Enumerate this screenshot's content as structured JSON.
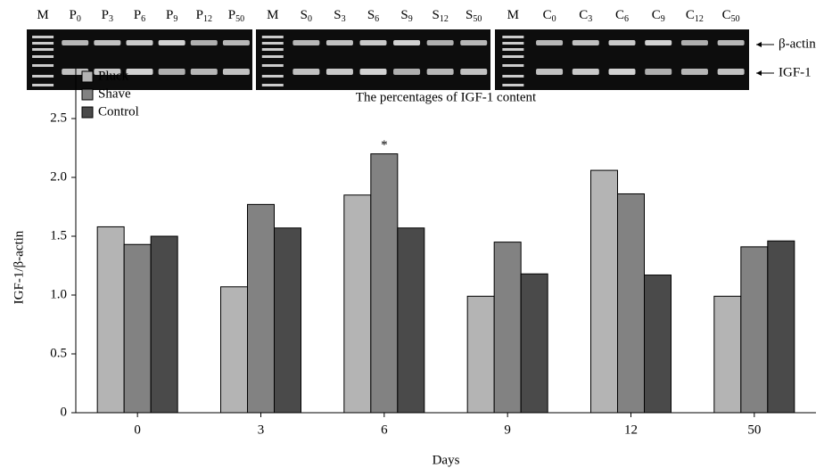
{
  "gels": [
    {
      "lanes": [
        {
          "base": "M"
        },
        {
          "base": "P",
          "sub": "0"
        },
        {
          "base": "P",
          "sub": "3"
        },
        {
          "base": "P",
          "sub": "6"
        },
        {
          "base": "P",
          "sub": "9"
        },
        {
          "base": "P",
          "sub": "12"
        },
        {
          "base": "P",
          "sub": "50"
        }
      ]
    },
    {
      "lanes": [
        {
          "base": "M"
        },
        {
          "base": "S",
          "sub": "0"
        },
        {
          "base": "S",
          "sub": "3"
        },
        {
          "base": "S",
          "sub": "6"
        },
        {
          "base": "S",
          "sub": "9"
        },
        {
          "base": "S",
          "sub": "12"
        },
        {
          "base": "S",
          "sub": "50"
        }
      ]
    },
    {
      "lanes": [
        {
          "base": "M"
        },
        {
          "base": "C",
          "sub": "0"
        },
        {
          "base": "C",
          "sub": "3"
        },
        {
          "base": "C",
          "sub": "6"
        },
        {
          "base": "C",
          "sub": "9"
        },
        {
          "base": "C",
          "sub": "12"
        },
        {
          "base": "C",
          "sub": "50"
        }
      ]
    }
  ],
  "gel_markers": [
    "β-actin",
    "IGF-1"
  ],
  "chart_data": {
    "type": "bar",
    "title": "The percentages of IGF-1 content",
    "x_label": "Days",
    "y_label": "IGF-1/β-actin",
    "categories": [
      "0",
      "3",
      "6",
      "9",
      "12",
      "50"
    ],
    "series": [
      {
        "name": "Pluck",
        "color": "#b4b4b4",
        "values": [
          1.58,
          1.07,
          1.85,
          0.99,
          2.06,
          0.99
        ]
      },
      {
        "name": "Shave",
        "color": "#828282",
        "values": [
          1.43,
          1.77,
          2.2,
          1.45,
          1.86,
          1.41
        ]
      },
      {
        "name": "Control",
        "color": "#4a4a4a",
        "values": [
          1.5,
          1.57,
          1.57,
          1.18,
          1.17,
          1.46
        ]
      }
    ],
    "annotations": [
      {
        "text": "*",
        "series": 1,
        "category": 2
      }
    ],
    "ylim": [
      0,
      2.5
    ],
    "yticks": [
      {
        "value": 0,
        "label": "0"
      },
      {
        "value": 0.5,
        "label": "0.5"
      },
      {
        "value": 1,
        "label": "1.0"
      },
      {
        "value": 1.5,
        "label": "1.5"
      },
      {
        "value": 2,
        "label": "2.0"
      },
      {
        "value": 2.5,
        "label": "2.5"
      }
    ],
    "legend": "top-left"
  }
}
